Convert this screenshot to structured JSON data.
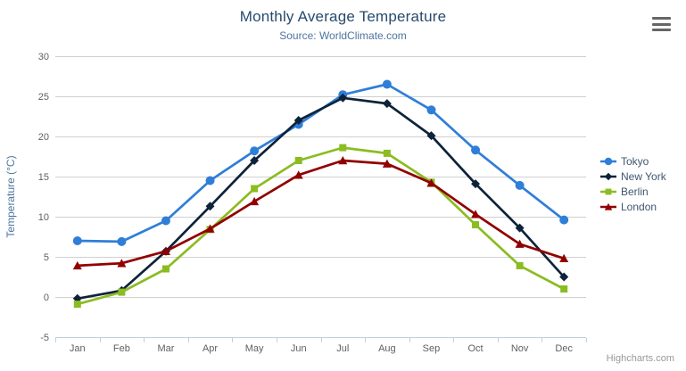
{
  "credits": "Highcharts.com",
  "export_menu": {
    "icon": "hamburger-icon"
  },
  "theme": {
    "background": "#ffffff",
    "title_color": "#274b6d",
    "subtitle_color": "#4d759e",
    "axis_label_color": "#606060",
    "axis_line_color": "#c0d0e0",
    "gridline_color": "#d0d0d0",
    "y_axis_title_color": "#4d759e",
    "legend_text_color": "#3e576f",
    "credits_color": "#999999",
    "menu_icon_color": "#666666"
  },
  "chart_data": {
    "type": "line",
    "title": "Monthly Average Temperature",
    "subtitle": "Source: WorldClimate.com",
    "categories": [
      "Jan",
      "Feb",
      "Mar",
      "Apr",
      "May",
      "Jun",
      "Jul",
      "Aug",
      "Sep",
      "Oct",
      "Nov",
      "Dec"
    ],
    "xlabel": "",
    "ylabel": "Temperature (°C)",
    "ylim": [
      -5,
      30
    ],
    "ytick_step": 5,
    "grid": true,
    "legend_position": "right",
    "series": [
      {
        "name": "Tokyo",
        "color": "#2f7ed8",
        "marker": "circle",
        "values": [
          7.0,
          6.9,
          9.5,
          14.5,
          18.2,
          21.5,
          25.2,
          26.5,
          23.3,
          18.3,
          13.9,
          9.6
        ]
      },
      {
        "name": "New York",
        "color": "#0d233a",
        "marker": "diamond",
        "values": [
          -0.2,
          0.8,
          5.7,
          11.3,
          17.0,
          22.0,
          24.8,
          24.1,
          20.1,
          14.1,
          8.6,
          2.5
        ]
      },
      {
        "name": "Berlin",
        "color": "#8bbc21",
        "marker": "square",
        "values": [
          -0.9,
          0.6,
          3.5,
          8.4,
          13.5,
          17.0,
          18.6,
          17.9,
          14.3,
          9.0,
          3.9,
          1.0
        ]
      },
      {
        "name": "London",
        "color": "#910000",
        "marker": "triangle",
        "values": [
          3.9,
          4.2,
          5.7,
          8.5,
          11.9,
          15.2,
          17.0,
          16.6,
          14.2,
          10.3,
          6.6,
          4.8
        ]
      }
    ]
  }
}
